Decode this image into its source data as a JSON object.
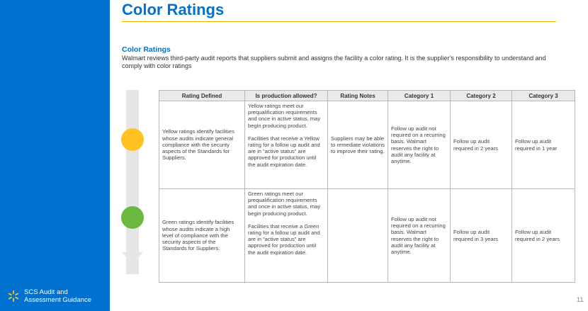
{
  "slide": {
    "title": "Color Ratings",
    "subheading": "Color Ratings",
    "description": "Walmart reviews third-party audit reports that suppliers submit and assigns the facility a color rating. It is the supplier’s responsibility to understand and comply with color ratings",
    "page_number": "11"
  },
  "brand": {
    "line1": "SCS Audit and",
    "line2": "Assessment Guidance",
    "icon": "walmart-spark-icon"
  },
  "colors": {
    "brand_blue": "#0071ce",
    "yellow": "#ffc220",
    "green": "#6cb93f",
    "rule": "#f2b600"
  },
  "table": {
    "headers": [
      "Rating Defined",
      "Is production allowed?",
      "Rating Notes",
      "Category 1",
      "Category 2",
      "Category 3"
    ],
    "rows": [
      {
        "color": "yellow",
        "defined": "Yellow ratings identify facilities whose audits indicate general compliance with the security aspects of the Standards for Suppliers.",
        "production_p1": "Yellow ratings meet our prequalification requirements and once in active status, may begin producing product.",
        "production_p2": "Facilities that receive a Yellow rating for a follow up audit and are in “active status” are approved  for production until the audit expiration date.",
        "notes": "Suppliers may be able to remediate violations to improve their rating.",
        "cat1": "Follow up audit not required on a recurring basis. Walmart reserves the right to audit any facility at anytime.",
        "cat2": "Follow up audit required in 2 years",
        "cat3": "Follow up audit required in 1 year"
      },
      {
        "color": "green",
        "defined": "Green ratings identify facilities whose audits indicate a high level of compliance with the security aspects of the Standards for Suppliers.",
        "production_p1": "Green ratings meet our prequalification requirements and once in active status, may begin producing product.",
        "production_p2": "Facilities that receive a Green rating for a follow up audit and are in “active status” are approved  for production until the audit expiration date.",
        "notes": "",
        "cat1": "Follow up audit not required on a recurring basis. Walmart reserves the right to audit any facility at anytime.",
        "cat2": "Follow up audit required in 3 years",
        "cat3": "Follow up audit required in 2 years"
      }
    ]
  }
}
